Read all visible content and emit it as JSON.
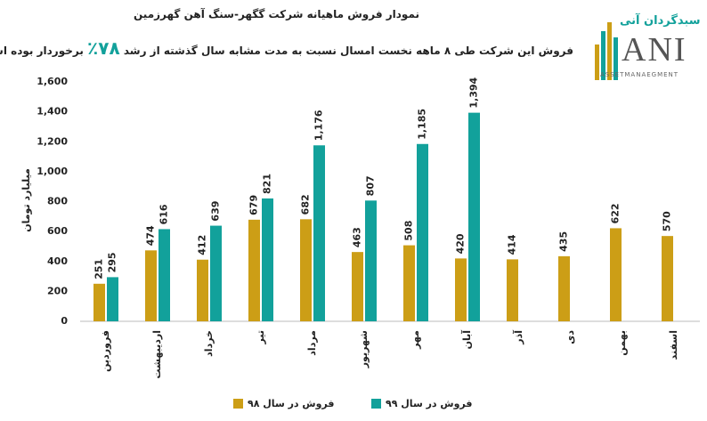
{
  "chart_data": {
    "type": "bar",
    "title": "نمودار فروش ماهیانه شرکت گگهر-سنگ آهن گهرزمین",
    "subtitle": [
      "فروش این شرکت طی ۸ ماهه نخست امسال نسبت به مدت مشابه سال گذشته از رشد",
      "۷۸٪",
      "برخوردار بوده است."
    ],
    "logo": {
      "name": "سبدگردان آنی",
      "mark": "ANI",
      "tagline": "ASSETMANAEGMENT"
    },
    "y_label": "میلیارد تومان",
    "categories": [
      "فروردین",
      "اردیبهشت",
      "خرداد",
      "تیر",
      "مرداد",
      "شهریور",
      "مهر",
      "آبان",
      "آذر",
      "دی",
      "بهمن",
      "اسفند"
    ],
    "series": [
      {
        "name": "فروش در سال ۹۸",
        "color": "#cc9e16",
        "values": [
          251,
          474,
          412,
          679,
          682,
          463,
          508,
          420,
          414,
          435,
          622,
          570
        ]
      },
      {
        "name": "فروش در سال ۹۹",
        "color": "#12a19b",
        "values": [
          295,
          616,
          639,
          821,
          1176,
          807,
          1185,
          1394,
          null,
          null,
          null,
          null
        ],
        "value_labels": [
          "295",
          "616",
          "639",
          "821",
          "1,176",
          "807",
          "1,185",
          "1,394",
          null,
          null,
          null,
          null
        ]
      }
    ],
    "ylim": [
      0,
      1600
    ],
    "yticks": [
      0,
      200,
      400,
      600,
      800,
      {
        "value": 1000,
        "label": "1,000"
      },
      {
        "value": 1200,
        "label": "1,200"
      },
      {
        "value": 1400,
        "label": "1,400"
      },
      {
        "value": 1600,
        "label": "1,600"
      }
    ],
    "grid": false
  }
}
